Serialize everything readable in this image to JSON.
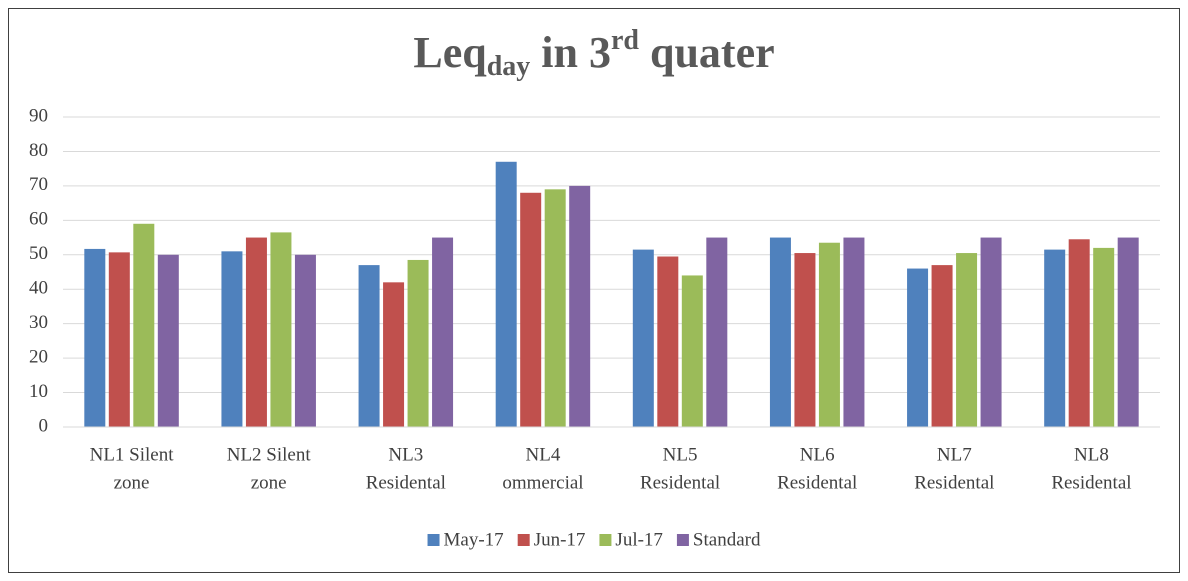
{
  "chart_data": {
    "type": "bar",
    "title": [
      "Leq",
      "day",
      " in 3",
      "rd",
      " quater"
    ],
    "categories": [
      [
        "NL1 Silent",
        "zone"
      ],
      [
        "NL2 Silent",
        "zone"
      ],
      [
        "NL3",
        "Residental"
      ],
      [
        "NL4",
        "ommercial"
      ],
      [
        "NL5",
        "Residental"
      ],
      [
        "NL6",
        "Residental"
      ],
      [
        "NL7",
        "Residental"
      ],
      [
        "NL8",
        "Residental"
      ]
    ],
    "series": [
      {
        "name": "May-17",
        "color": "#4f81bd",
        "values": [
          51.7,
          51,
          47,
          77,
          51.5,
          55,
          46,
          51.5
        ]
      },
      {
        "name": "Jun-17",
        "color": "#c0504d",
        "values": [
          50.7,
          55,
          42,
          68,
          49.5,
          50.5,
          47,
          54.5
        ]
      },
      {
        "name": "Jul-17",
        "color": "#9bbb59",
        "values": [
          59,
          56.5,
          48.5,
          69,
          44,
          53.5,
          50.5,
          52
        ]
      },
      {
        "name": "Standard",
        "color": "#8064a2",
        "values": [
          50,
          50,
          55,
          70,
          55,
          55,
          55,
          55
        ]
      }
    ],
    "ylim": [
      0,
      90
    ],
    "yticks": [
      0,
      10,
      20,
      30,
      40,
      50,
      60,
      70,
      80,
      90
    ],
    "grid": true,
    "legend": "bottom"
  }
}
